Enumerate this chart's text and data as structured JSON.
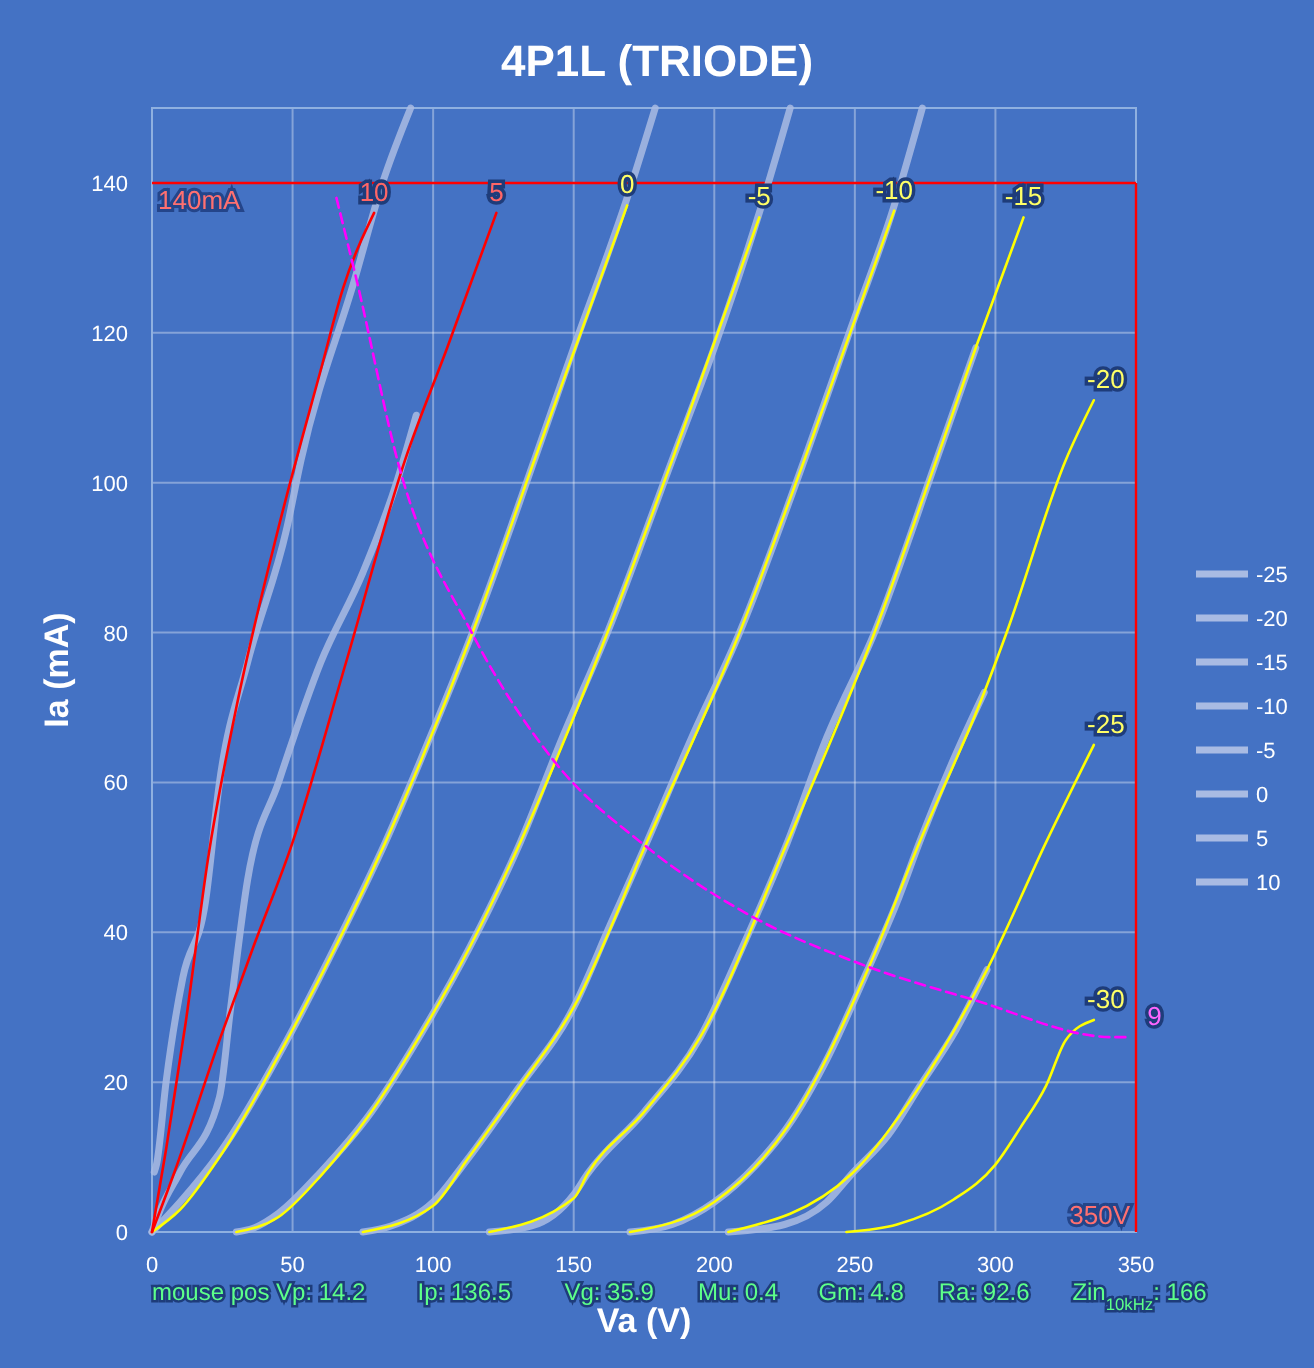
{
  "chart_data": {
    "type": "line",
    "title": "4P1L (TRIODE)",
    "xlabel": "Va (V)",
    "ylabel": "Ia (mA)",
    "xlim": [
      0,
      350
    ],
    "ylim": [
      0,
      150
    ],
    "xticks": [
      0,
      50,
      100,
      150,
      200,
      250,
      300,
      350
    ],
    "yticks": [
      0,
      20,
      40,
      60,
      80,
      100,
      120,
      140
    ],
    "grid": true,
    "legend": "right",
    "line_style": "solid",
    "marker": "none",
    "series": [
      {
        "name": "-25",
        "color": "#a9bbe3",
        "x": [
          205,
          225,
          240,
          249,
          262,
          273,
          286,
          297
        ],
        "values": [
          0,
          1,
          4,
          7.8,
          13,
          19.4,
          27,
          35
        ]
      },
      {
        "name": "-20",
        "color": "#a9bbe3",
        "x": [
          170,
          185,
          200,
          215,
          226,
          240,
          254,
          265,
          273,
          285,
          296
        ],
        "values": [
          0,
          1,
          4,
          9,
          14,
          23,
          34.5,
          44,
          52,
          63,
          72
        ]
      },
      {
        "name": "-15",
        "color": "#a9bbe3",
        "x": [
          120,
          135,
          150,
          155,
          175,
          195,
          210,
          226,
          240,
          257,
          279,
          293
        ],
        "values": [
          0,
          0.8,
          5,
          7.8,
          16,
          26,
          38,
          52,
          66,
          80,
          103,
          118
        ]
      },
      {
        "name": "-10",
        "color": "#a9bbe3",
        "x": [
          75,
          85,
          100,
          112,
          130,
          150,
          163,
          176,
          192,
          209,
          232,
          248,
          264,
          274
        ],
        "values": [
          0,
          0.8,
          4,
          9.6,
          19,
          30,
          41,
          52,
          66,
          80,
          103,
          120,
          137,
          150
        ]
      },
      {
        "name": "-5",
        "color": "#a9bbe3",
        "x": [
          30,
          36,
          45,
          60,
          78,
          95,
          113,
          131,
          146,
          162,
          185,
          200,
          216,
          227
        ],
        "values": [
          0,
          0.5,
          2.5,
          8,
          16,
          26,
          38,
          52,
          66,
          80,
          103,
          118,
          136,
          150
        ]
      },
      {
        "name": "0",
        "color": "#a9bbe3",
        "x": [
          0,
          10,
          24,
          48,
          65,
          83,
          100,
          114,
          136,
          150,
          169,
          179
        ],
        "values": [
          0,
          4,
          10.5,
          25.6,
          38,
          52,
          67,
          80,
          103,
          118,
          138,
          150
        ]
      },
      {
        "name": "5",
        "color": "#a9bbe3",
        "x": [
          0,
          3,
          10,
          24,
          28,
          34,
          45,
          60,
          75,
          87,
          94
        ],
        "values": [
          0,
          3,
          8,
          18,
          30,
          47,
          60,
          76,
          88,
          100,
          109
        ]
      },
      {
        "name": "10",
        "color": "#a9bbe3",
        "x": [
          0.8,
          1.6,
          5,
          11,
          19,
          24,
          34,
          48,
          53,
          72,
          82,
          92
        ],
        "values": [
          8,
          9,
          20,
          34,
          44,
          60,
          76,
          94,
          103,
          127,
          140,
          150
        ]
      },
      {
        "color": "#ffff00",
        "x": [
          0,
          10,
          24,
          48,
          83,
          114,
          136,
          169
        ],
        "values": [
          0,
          3,
          10,
          25.6,
          52,
          80,
          103,
          137
        ]
      },
      {
        "color": "#ffff00",
        "x": [
          30,
          45,
          60,
          78,
          95,
          113,
          131,
          162,
          185,
          216
        ],
        "values": [
          0,
          2,
          7.5,
          16,
          26,
          38,
          52,
          80,
          103,
          135.4
        ]
      },
      {
        "color": "#ffff00",
        "x": [
          75,
          100,
          112,
          130,
          150,
          176,
          209,
          232,
          264
        ],
        "values": [
          0,
          3.5,
          9.6,
          19,
          30,
          52,
          80,
          103,
          136.3
        ]
      },
      {
        "color": "#ffff00",
        "x": [
          120,
          150,
          155,
          175,
          195,
          226,
          257,
          279,
          293,
          310
        ],
        "values": [
          0,
          4.5,
          7.8,
          16,
          26,
          52,
          80,
          103,
          118,
          135.4
        ]
      },
      {
        "color": "#ffff00",
        "x": [
          170,
          200,
          226,
          254,
          273,
          296,
          304,
          325,
          335
        ],
        "values": [
          0,
          4,
          14,
          34.5,
          52,
          72,
          80,
          103,
          111
        ]
      },
      {
        "color": "#ffff00",
        "x": [
          205,
          249,
          273,
          297,
          318,
          335
        ],
        "values": [
          0,
          7.8,
          19.4,
          35,
          52,
          65
        ]
      },
      {
        "color": "#ffff00",
        "x": [
          247,
          265,
          285,
          300,
          309,
          318,
          325,
          335
        ],
        "values": [
          0,
          1,
          4.3,
          9,
          14,
          19.5,
          25.6,
          28.3
        ]
      },
      {
        "color": "#ff0000",
        "x": [
          0,
          5,
          12,
          20,
          30,
          45,
          60,
          68,
          79
        ],
        "values": [
          0,
          11,
          28,
          50,
          70,
          94,
          115,
          126,
          136
        ]
      },
      {
        "color": "#ff0000",
        "x": [
          0,
          8,
          24,
          36,
          50,
          69,
          90,
          105,
          122.5
        ],
        "values": [
          0,
          8,
          25.6,
          38,
          52,
          76,
          103,
          118,
          136
        ]
      },
      {
        "color": "#ff00ff",
        "line_style": "dashed",
        "x": [
          65.6,
          72.8,
          88,
          114,
          142.7,
          175.9,
          211.5,
          251.8,
          292.1,
          341.9,
          348
        ],
        "values": [
          138,
          127,
          102,
          79.8,
          63,
          51.4,
          42.5,
          35.8,
          31,
          26,
          26
        ]
      }
    ],
    "ref_lines": [
      {
        "axis": "y",
        "value": 140,
        "label": "140mA",
        "color": "#ff0000"
      },
      {
        "axis": "x",
        "value": 350,
        "label": "350V",
        "color": "#ff0000"
      }
    ],
    "annotations": [
      {
        "text": "10",
        "x": 79,
        "y": 136
      },
      {
        "text": "5",
        "x": 122.5,
        "y": 136
      },
      {
        "text": "0",
        "x": 169,
        "y": 137
      },
      {
        "text": "-5",
        "x": 216,
        "y": 135.4
      },
      {
        "text": "-10",
        "x": 264,
        "y": 136.3
      },
      {
        "text": "-15",
        "x": 310,
        "y": 135.4
      },
      {
        "text": "-20",
        "x": 335,
        "y": 111
      },
      {
        "text": "-25",
        "x": 335,
        "y": 65
      },
      {
        "text": "-30",
        "x": 335,
        "y": 28.3
      },
      {
        "text": "9",
        "x": 348,
        "y": 26
      },
      "mouse pos Vp: 14.2",
      "Ip: 136.5",
      "Vg: 35.9",
      "Mu: 0.4",
      "Gm: 4.8",
      "Ra: 92.6",
      "Zin$_{10kHz}$: 166"
    ]
  }
}
